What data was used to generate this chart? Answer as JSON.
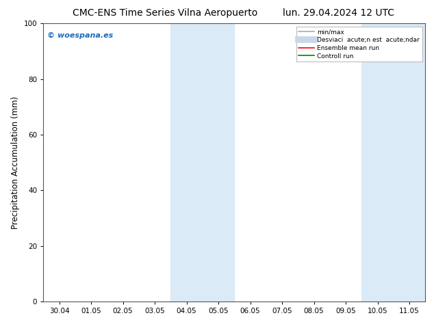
{
  "title_left": "CMC-ENS Time Series Vilna Aeropuerto",
  "title_right": "lun. 29.04.2024 12 UTC",
  "ylabel": "Precipitation Accumulation (mm)",
  "ylim": [
    0,
    100
  ],
  "yticks": [
    0,
    20,
    40,
    60,
    80,
    100
  ],
  "x_tick_labels": [
    "30.04",
    "01.05",
    "02.05",
    "03.05",
    "04.05",
    "05.05",
    "06.05",
    "07.05",
    "08.05",
    "09.05",
    "10.05",
    "11.05"
  ],
  "x_tick_positions": [
    0,
    1,
    2,
    3,
    4,
    5,
    6,
    7,
    8,
    9,
    10,
    11
  ],
  "shaded_regions": [
    {
      "xmin": 3.5,
      "xmax": 5.5,
      "color": "#daeaf7"
    },
    {
      "xmin": 9.5,
      "xmax": 11.5,
      "color": "#daeaf7"
    }
  ],
  "watermark_text": "© woespana.es",
  "watermark_color": "#1a6bbf",
  "background_color": "#ffffff",
  "plot_bg_color": "#ffffff",
  "legend_entries": [
    {
      "label": "min/max",
      "color": "#aaaaaa",
      "lw": 1.2
    },
    {
      "label": "Desviaci  acute;n est  acute;ndar",
      "color": "#c8d8e8",
      "lw": 7
    },
    {
      "label": "Ensemble mean run",
      "color": "red",
      "lw": 1.2
    },
    {
      "label": "Controll run",
      "color": "green",
      "lw": 1.2
    }
  ],
  "title_fontsize": 10,
  "axis_label_fontsize": 8.5,
  "tick_fontsize": 7.5,
  "watermark_fontsize": 8
}
